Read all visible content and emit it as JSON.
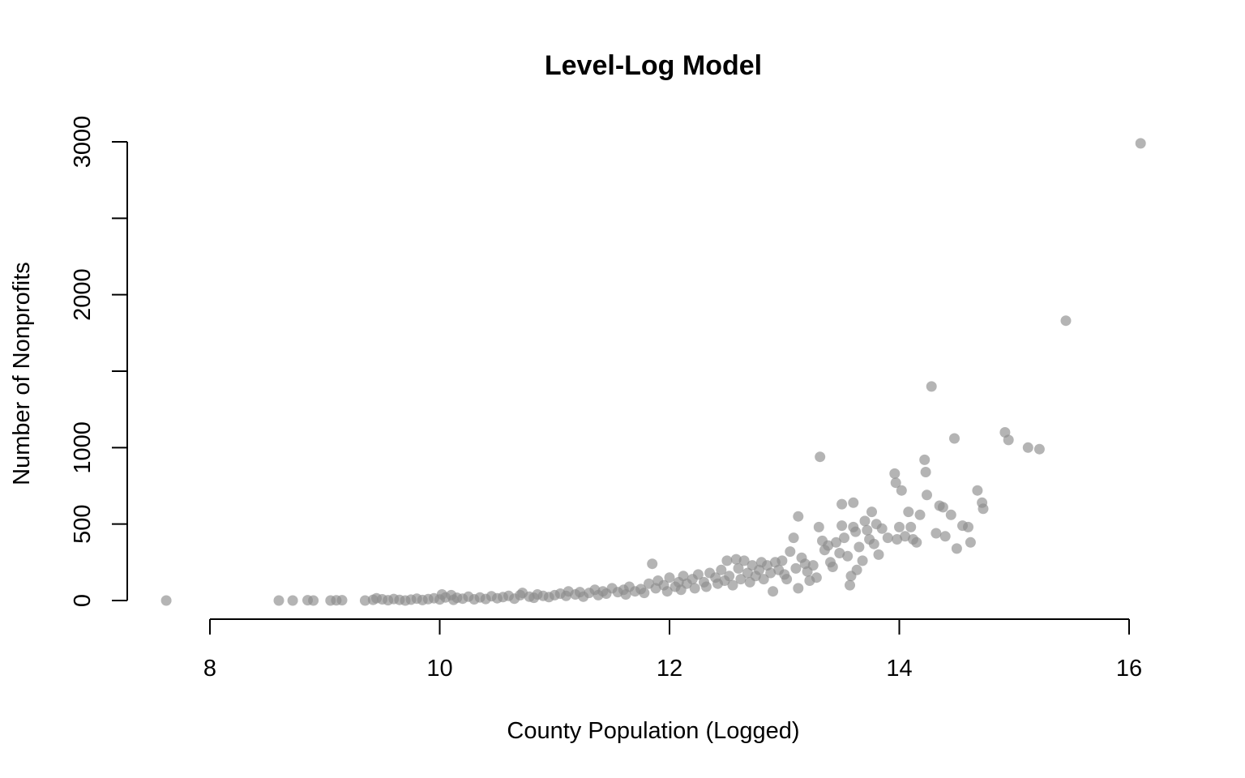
{
  "chart_data": {
    "type": "scatter",
    "title": "Level-Log Model",
    "xlabel": "County Population (Logged)",
    "ylabel": "Number of Nonprofits",
    "xlim": [
      8,
      16
    ],
    "ylim": [
      0,
      3000
    ],
    "x_ticks": [
      8,
      10,
      12,
      14,
      16
    ],
    "y_ticks": [
      0,
      500,
      1000,
      1500,
      2000,
      2500,
      3000
    ],
    "y_tick_labels": [
      "0",
      "500",
      "1000",
      "",
      "2000",
      "",
      "3000"
    ],
    "grid": false,
    "legend": "none",
    "point_color": "#8c8c8c",
    "point_opacity": 0.65,
    "points": [
      [
        7.62,
        0
      ],
      [
        8.6,
        0
      ],
      [
        8.72,
        0
      ],
      [
        8.85,
        2
      ],
      [
        8.9,
        0
      ],
      [
        9.05,
        0
      ],
      [
        9.1,
        1
      ],
      [
        9.15,
        2
      ],
      [
        9.35,
        0
      ],
      [
        9.42,
        5
      ],
      [
        9.45,
        15
      ],
      [
        9.5,
        8
      ],
      [
        9.55,
        2
      ],
      [
        9.6,
        10
      ],
      [
        9.65,
        4
      ],
      [
        9.7,
        0
      ],
      [
        9.75,
        6
      ],
      [
        9.8,
        12
      ],
      [
        9.85,
        3
      ],
      [
        9.9,
        9
      ],
      [
        9.95,
        15
      ],
      [
        10.0,
        7
      ],
      [
        10.02,
        40
      ],
      [
        10.05,
        20
      ],
      [
        10.1,
        35
      ],
      [
        10.12,
        5
      ],
      [
        10.15,
        18
      ],
      [
        10.2,
        12
      ],
      [
        10.25,
        25
      ],
      [
        10.3,
        8
      ],
      [
        10.35,
        20
      ],
      [
        10.4,
        10
      ],
      [
        10.45,
        28
      ],
      [
        10.5,
        15
      ],
      [
        10.55,
        22
      ],
      [
        10.6,
        30
      ],
      [
        10.65,
        12
      ],
      [
        10.7,
        35
      ],
      [
        10.72,
        50
      ],
      [
        10.78,
        25
      ],
      [
        10.82,
        18
      ],
      [
        10.85,
        40
      ],
      [
        10.9,
        30
      ],
      [
        10.95,
        22
      ],
      [
        11.0,
        35
      ],
      [
        11.05,
        45
      ],
      [
        11.1,
        30
      ],
      [
        11.12,
        60
      ],
      [
        11.18,
        40
      ],
      [
        11.22,
        55
      ],
      [
        11.25,
        25
      ],
      [
        11.3,
        50
      ],
      [
        11.35,
        70
      ],
      [
        11.38,
        35
      ],
      [
        11.42,
        60
      ],
      [
        11.45,
        45
      ],
      [
        11.5,
        80
      ],
      [
        11.55,
        55
      ],
      [
        11.6,
        70
      ],
      [
        11.62,
        40
      ],
      [
        11.65,
        90
      ],
      [
        11.7,
        60
      ],
      [
        11.75,
        75
      ],
      [
        11.78,
        50
      ],
      [
        11.82,
        110
      ],
      [
        11.85,
        240
      ],
      [
        11.88,
        80
      ],
      [
        11.9,
        130
      ],
      [
        11.95,
        100
      ],
      [
        11.98,
        60
      ],
      [
        12.0,
        150
      ],
      [
        12.05,
        90
      ],
      [
        12.08,
        120
      ],
      [
        12.1,
        70
      ],
      [
        12.12,
        160
      ],
      [
        12.15,
        110
      ],
      [
        12.2,
        140
      ],
      [
        12.22,
        80
      ],
      [
        12.25,
        170
      ],
      [
        12.3,
        120
      ],
      [
        12.32,
        90
      ],
      [
        12.35,
        180
      ],
      [
        12.4,
        150
      ],
      [
        12.42,
        110
      ],
      [
        12.45,
        200
      ],
      [
        12.48,
        130
      ],
      [
        12.5,
        260
      ],
      [
        12.52,
        160
      ],
      [
        12.55,
        100
      ],
      [
        12.58,
        270
      ],
      [
        12.6,
        210
      ],
      [
        12.62,
        140
      ],
      [
        12.65,
        260
      ],
      [
        12.68,
        180
      ],
      [
        12.7,
        120
      ],
      [
        12.72,
        230
      ],
      [
        12.75,
        160
      ],
      [
        12.78,
        200
      ],
      [
        12.8,
        250
      ],
      [
        12.82,
        140
      ],
      [
        12.85,
        230
      ],
      [
        12.88,
        180
      ],
      [
        12.9,
        60
      ],
      [
        12.92,
        250
      ],
      [
        12.95,
        200
      ],
      [
        12.98,
        260
      ],
      [
        13.0,
        170
      ],
      [
        13.02,
        140
      ],
      [
        13.05,
        320
      ],
      [
        13.08,
        410
      ],
      [
        13.1,
        210
      ],
      [
        13.12,
        550
      ],
      [
        13.12,
        80
      ],
      [
        13.15,
        280
      ],
      [
        13.18,
        240
      ],
      [
        13.2,
        190
      ],
      [
        13.22,
        130
      ],
      [
        13.25,
        230
      ],
      [
        13.28,
        150
      ],
      [
        13.3,
        480
      ],
      [
        13.31,
        940
      ],
      [
        13.33,
        390
      ],
      [
        13.35,
        330
      ],
      [
        13.38,
        360
      ],
      [
        13.4,
        250
      ],
      [
        13.42,
        220
      ],
      [
        13.45,
        380
      ],
      [
        13.48,
        310
      ],
      [
        13.5,
        630
      ],
      [
        13.5,
        490
      ],
      [
        13.52,
        410
      ],
      [
        13.55,
        290
      ],
      [
        13.57,
        100
      ],
      [
        13.58,
        160
      ],
      [
        13.6,
        640
      ],
      [
        13.6,
        480
      ],
      [
        13.62,
        450
      ],
      [
        13.63,
        200
      ],
      [
        13.65,
        350
      ],
      [
        13.68,
        260
      ],
      [
        13.7,
        520
      ],
      [
        13.72,
        460
      ],
      [
        13.74,
        400
      ],
      [
        13.76,
        580
      ],
      [
        13.78,
        370
      ],
      [
        13.8,
        500
      ],
      [
        13.82,
        300
      ],
      [
        13.85,
        470
      ],
      [
        13.9,
        410
      ],
      [
        13.96,
        830
      ],
      [
        13.97,
        770
      ],
      [
        13.98,
        400
      ],
      [
        14.0,
        480
      ],
      [
        14.02,
        720
      ],
      [
        14.05,
        420
      ],
      [
        14.08,
        580
      ],
      [
        14.1,
        480
      ],
      [
        14.12,
        400
      ],
      [
        14.15,
        380
      ],
      [
        14.18,
        560
      ],
      [
        14.22,
        920
      ],
      [
        14.23,
        840
      ],
      [
        14.24,
        690
      ],
      [
        14.28,
        1400
      ],
      [
        14.32,
        440
      ],
      [
        14.35,
        620
      ],
      [
        14.38,
        610
      ],
      [
        14.4,
        420
      ],
      [
        14.45,
        560
      ],
      [
        14.48,
        1060
      ],
      [
        14.5,
        340
      ],
      [
        14.55,
        490
      ],
      [
        14.6,
        480
      ],
      [
        14.62,
        380
      ],
      [
        14.68,
        720
      ],
      [
        14.72,
        640
      ],
      [
        14.73,
        600
      ],
      [
        14.92,
        1100
      ],
      [
        14.95,
        1050
      ],
      [
        15.12,
        1000
      ],
      [
        15.22,
        990
      ],
      [
        15.45,
        1830
      ],
      [
        16.1,
        2990
      ]
    ]
  }
}
